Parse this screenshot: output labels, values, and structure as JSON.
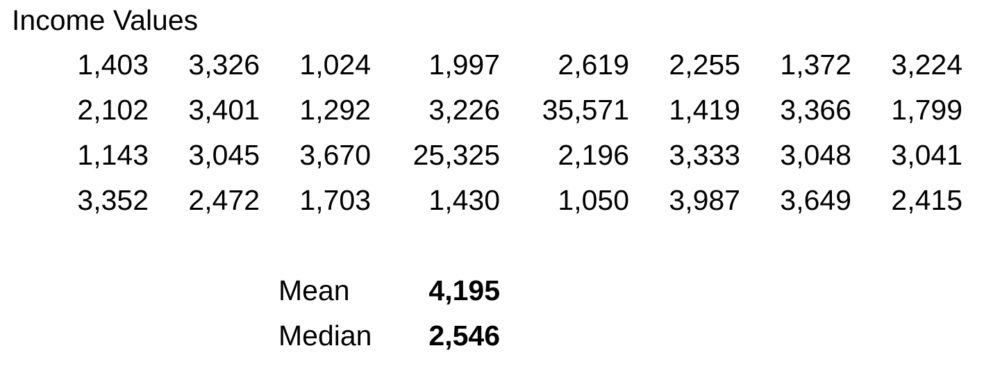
{
  "title": "Income Values",
  "rows": [
    [
      "1,403",
      "3,326",
      "1,024",
      "1,997",
      "2,619",
      "2,255",
      "1,372",
      "3,224"
    ],
    [
      "2,102",
      "3,401",
      "1,292",
      "3,226",
      "35,571",
      "1,419",
      "3,366",
      "1,799"
    ],
    [
      "1,143",
      "3,045",
      "3,670",
      "25,325",
      "2,196",
      "3,333",
      "3,048",
      "3,041"
    ],
    [
      "3,352",
      "2,472",
      "1,703",
      "1,430",
      "1,050",
      "3,987",
      "3,649",
      "2,415"
    ]
  ],
  "stats": {
    "mean_label": "Mean",
    "mean_value": "4,195",
    "median_label": "Median",
    "median_value": "2,546"
  }
}
